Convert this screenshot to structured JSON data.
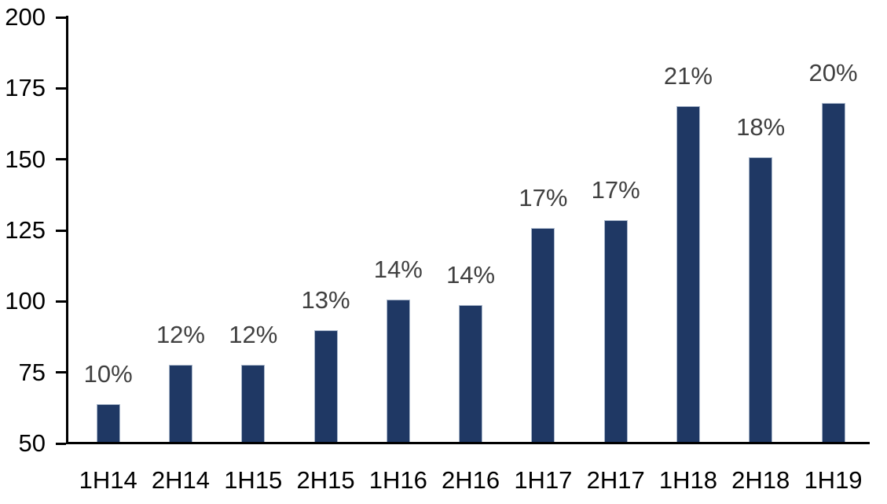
{
  "chart_data": {
    "type": "bar",
    "title": "",
    "xlabel": "",
    "ylabel": "",
    "categories": [
      "1H14",
      "2H14",
      "1H15",
      "2H15",
      "1H16",
      "2H16",
      "1H17",
      "2H17",
      "1H18",
      "2H18",
      "1H19"
    ],
    "values": [
      64,
      78,
      78,
      90,
      101,
      99,
      126,
      129,
      169,
      151,
      170
    ],
    "bar_labels": [
      "10%",
      "12%",
      "12%",
      "13%",
      "14%",
      "14%",
      "17%",
      "17%",
      "21%",
      "18%",
      "20%"
    ],
    "ylim": [
      50,
      200
    ],
    "yticks": [
      50,
      75,
      100,
      125,
      150,
      175,
      200
    ],
    "grid": false,
    "legend": null,
    "colors": {
      "bar_fill": "#1f3864",
      "bar_border": "#a9b7cb",
      "value_label": "#404040",
      "axis": "#000000",
      "background": "#ffffff"
    }
  }
}
